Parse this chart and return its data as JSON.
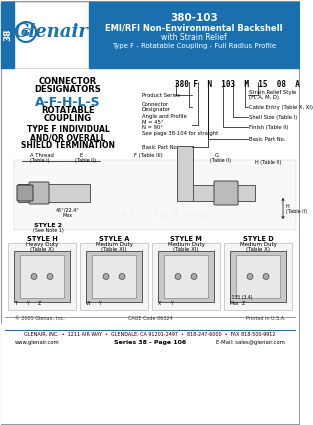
{
  "title_number": "380-103",
  "title_line1": "EMI/RFI Non-Environmental Backshell",
  "title_line2": "with Strain Relief",
  "title_line3": "Type F - Rotatable Coupling - Full Radius Profile",
  "header_bg": "#1a6faf",
  "body_bg": "#ffffff",
  "tab_text": "38",
  "designators": "A-F-H-L-S",
  "part_number_example": "380 F N 103 M 15 08 A",
  "footer_line1": "GLENAIR, INC.  •  1211 AIR WAY  •  GLENDALE, CA 91201-2497  •  818-247-6000  •  FAX 818-500-9912",
  "footer_line2": "www.glenair.com",
  "footer_line3": "Series 38 - Page 106",
  "footer_line4": "E-Mail: sales@glenair.com",
  "footer_copy": "© 2005 Glenair, Inc.",
  "footer_cage": "CAGE Code 06324",
  "footer_printed": "Printed in U.S.A.",
  "accent_blue": "#1a6faf",
  "mid_gray": "#aaaaaa",
  "light_gray": "#dddddd"
}
